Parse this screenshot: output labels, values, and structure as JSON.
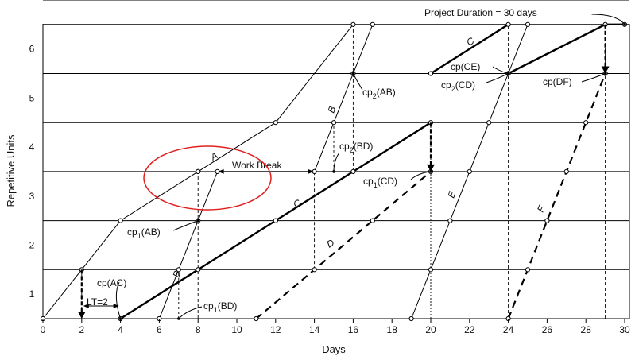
{
  "chart_data": {
    "type": "line",
    "xlabel": "Days",
    "ylabel": "Repetitive Units",
    "xlim": [
      0,
      30
    ],
    "ylim": [
      0,
      6
    ],
    "x_ticks": [
      0,
      2,
      4,
      6,
      8,
      10,
      12,
      14,
      16,
      18,
      20,
      22,
      24,
      26,
      28,
      30
    ],
    "y_ticks": [
      1,
      2,
      3,
      4,
      5,
      6
    ],
    "grid": "horizontal",
    "series": [
      {
        "name": "A",
        "style": "thin",
        "segments": [
          [
            [
              0,
              0
            ],
            [
              2,
              1
            ],
            [
              4,
              2
            ],
            [
              8,
              3
            ]
          ],
          [
            [
              8,
              3
            ],
            [
              12,
              4
            ],
            [
              16,
              6
            ]
          ]
        ]
      },
      {
        "name": "B",
        "style": "thin",
        "segments": [
          [
            [
              6,
              0
            ],
            [
              7,
              1
            ],
            [
              8,
              2
            ],
            [
              9,
              3
            ]
          ],
          [
            [
              14,
              3
            ],
            [
              15,
              4
            ],
            [
              16,
              5
            ],
            [
              17,
              6
            ]
          ]
        ]
      },
      {
        "name": "C",
        "style": "bold",
        "segments": [
          [
            [
              4,
              0
            ],
            [
              8,
              1
            ],
            [
              12,
              2
            ],
            [
              16,
              3
            ],
            [
              20,
              4
            ]
          ],
          [
            [
              20,
              5
            ],
            [
              24,
              6
            ]
          ]
        ]
      },
      {
        "name": "D",
        "style": "dashed",
        "segments": [
          [
            [
              11,
              0
            ],
            [
              14,
              1
            ],
            [
              17,
              2
            ],
            [
              20,
              3
            ]
          ]
        ]
      },
      {
        "name": "E",
        "style": "thin",
        "segments": [
          [
            [
              19,
              0
            ],
            [
              20,
              1
            ],
            [
              21,
              2
            ],
            [
              22,
              3
            ],
            [
              23,
              4
            ],
            [
              24,
              5
            ],
            [
              25,
              6
            ]
          ]
        ]
      },
      {
        "name": "F",
        "style": "dashed",
        "segments": [
          [
            [
              24,
              0
            ],
            [
              25,
              1
            ],
            [
              26,
              2
            ],
            [
              27,
              3
            ],
            [
              28,
              4
            ],
            [
              29,
              5
            ]
          ]
        ]
      },
      {
        "name": "DF",
        "style": "bold",
        "segments": [
          [
            [
              24,
              5
            ],
            [
              29,
              6
            ],
            [
              30,
              6
            ]
          ]
        ]
      }
    ],
    "annotations": {
      "project_duration": "Project Duration = 30 days",
      "work_break": "Work Break",
      "lt": "LT=2",
      "cp_ac": "cp(AC)",
      "cp1_ab": "cp",
      "cp1_bd": "cp",
      "cp1_cd": "cp",
      "cp2_ab": "cp",
      "cp2_bd": "cp",
      "cp2_cd": "cp",
      "cp_ce": "cp(CE)",
      "cp_df": "cp(DF)",
      "sub1": "1",
      "sub2": "2",
      "suffix_ab": "(AB)",
      "suffix_bd": "(BD)",
      "suffix_cd": "(CD)"
    },
    "activity_labels": [
      "A",
      "B",
      "C",
      "D",
      "E",
      "F",
      "B",
      "C"
    ],
    "colors": {
      "line": "#000000",
      "highlight": "#e02020"
    }
  }
}
